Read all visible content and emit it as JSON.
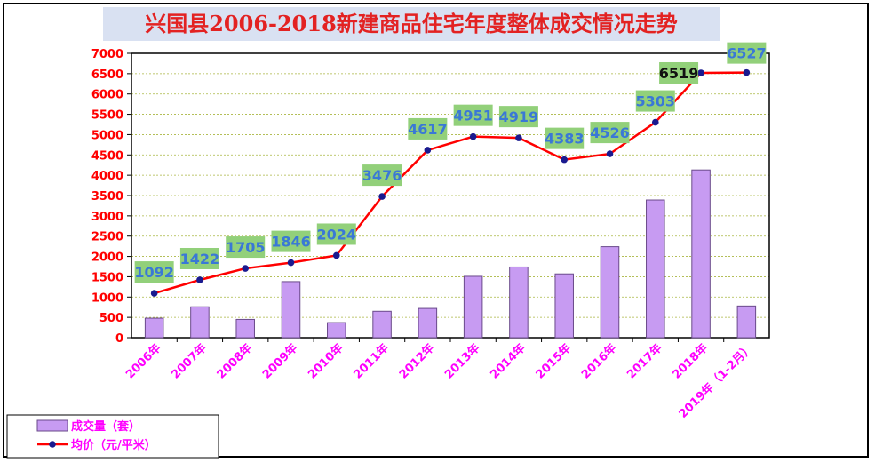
{
  "colors": {
    "title_bg": "#d9e1f2",
    "title_text": "#e32222",
    "bar_fill": "#c79bf2",
    "bar_stroke": "#6a4a8a",
    "line": "#ff0000",
    "marker": "#1a1a8f",
    "grid": "#a9b640",
    "label_bg": "#92d07a",
    "label_text": "#3a78d6",
    "tick_text": "#ff0000",
    "category_text": "#ff00ff",
    "legend_text": "#ff00ff"
  },
  "chart_data": {
    "type": "bar",
    "title": "兴国县2006-2018新建商品住宅年度整体成交情况走势",
    "categories": [
      "2006年",
      "2007年",
      "2008年",
      "2009年",
      "2010年",
      "2011年",
      "2012年",
      "2013年",
      "2014年",
      "2015年",
      "2016年",
      "2017年",
      "2018年",
      "2019年（1-2月）"
    ],
    "ylim": [
      0,
      7000
    ],
    "yticks": [
      0,
      500,
      1000,
      1500,
      2000,
      2500,
      3000,
      3500,
      4000,
      4500,
      5000,
      5500,
      6000,
      6500,
      7000
    ],
    "grid": true,
    "legend_position": "bottom-left",
    "series": [
      {
        "name": "成交量（套）",
        "type": "bar",
        "values": [
          480,
          760,
          450,
          1380,
          370,
          650,
          720,
          1510,
          1740,
          1570,
          2240,
          3390,
          4130,
          780
        ]
      },
      {
        "name": "均价（元/平米）",
        "type": "line",
        "values": [
          1092,
          1422,
          1705,
          1846,
          2024,
          3476,
          4617,
          4951,
          4919,
          4383,
          4526,
          5303,
          6519,
          6527
        ]
      }
    ]
  }
}
